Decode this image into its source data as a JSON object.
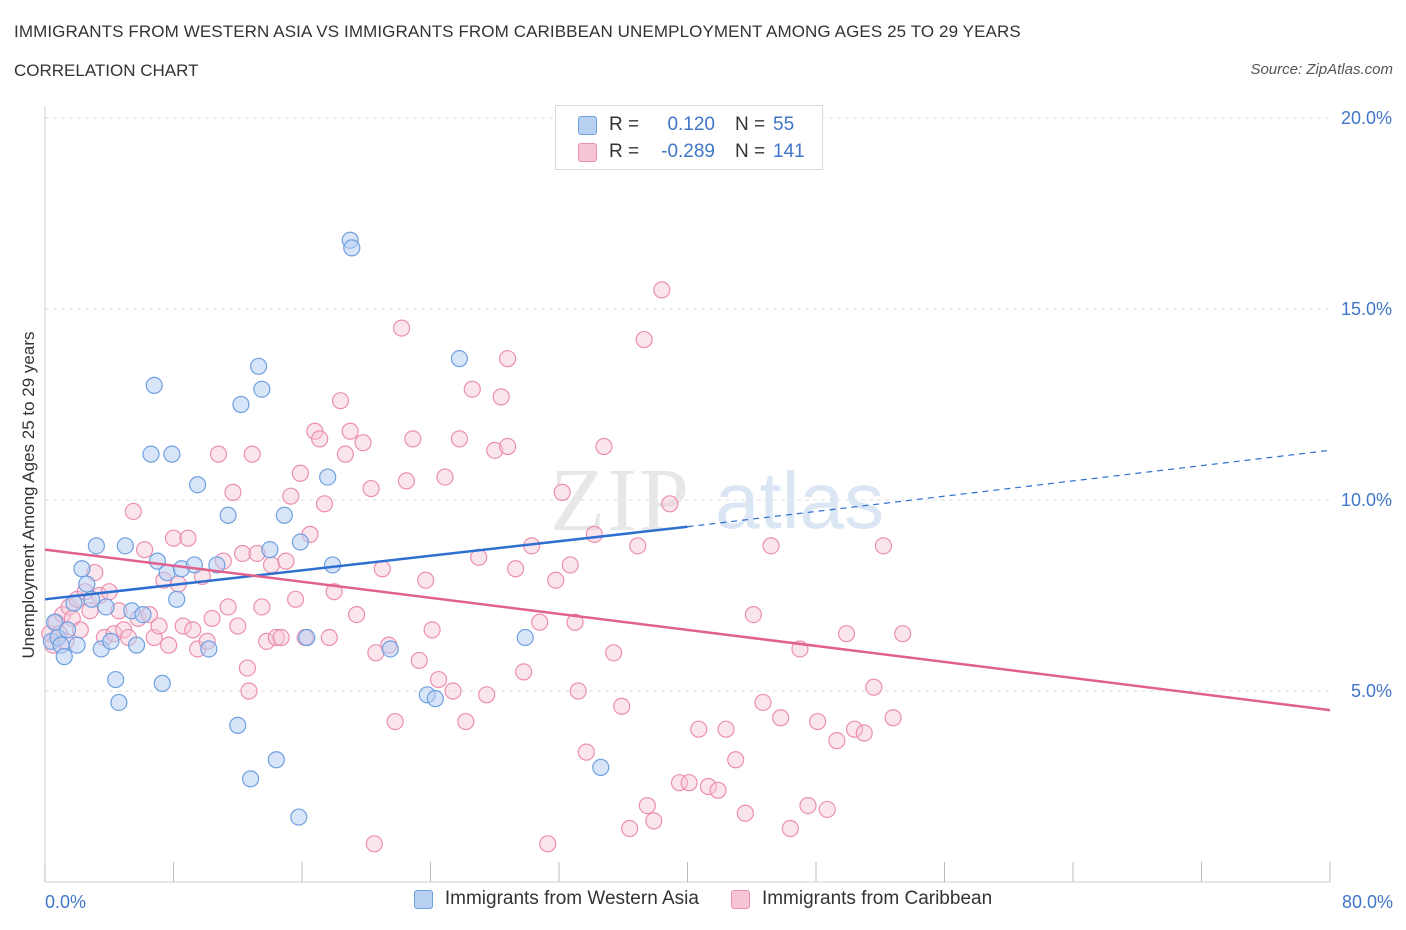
{
  "header": {
    "title": "IMMIGRANTS FROM WESTERN ASIA VS IMMIGRANTS FROM CARIBBEAN UNEMPLOYMENT AMONG AGES 25 TO 29 YEARS",
    "subtitle": "CORRELATION CHART",
    "source": "Source: ZipAtlas.com"
  },
  "watermark": {
    "zip": "ZIP",
    "atlas": "atlas"
  },
  "legend": {
    "rows": [
      {
        "r_label": "R =",
        "r_value": "0.120",
        "n_label": "N =",
        "n_value": "55",
        "color": "#6fa0e0"
      },
      {
        "r_label": "R =",
        "r_value": "-0.289",
        "n_label": "N =",
        "n_value": "141",
        "color": "#ec8fae"
      }
    ]
  },
  "bottom_legend": {
    "western_asia": "Immigrants from Western Asia",
    "caribbean": "Immigrants from Caribbean"
  },
  "chart_data": {
    "type": "scatter",
    "title": "IMMIGRANTS FROM WESTERN ASIA VS IMMIGRANTS FROM CARIBBEAN UNEMPLOYMENT AMONG AGES 25 TO 29 YEARS",
    "xlabel": "",
    "ylabel": "Unemployment Among Ages 25 to 29 years",
    "xlim": [
      0,
      80
    ],
    "ylim": [
      0,
      20
    ],
    "x_tick_labels": [
      "0.0%",
      "80.0%"
    ],
    "y_ticks": [
      5,
      10,
      15,
      20
    ],
    "y_tick_labels": [
      "5.0%",
      "10.0%",
      "15.0%",
      "20.0%"
    ],
    "grid": true,
    "series": [
      {
        "name": "Immigrants from Western Asia",
        "color": "#6fa0e0",
        "fill": "#b8d0f2",
        "points": [
          [
            0.4,
            6.3
          ],
          [
            0.6,
            6.8
          ],
          [
            0.8,
            6.4
          ],
          [
            1.0,
            6.2
          ],
          [
            1.2,
            5.9
          ],
          [
            1.4,
            6.6
          ],
          [
            1.8,
            7.3
          ],
          [
            2.0,
            6.2
          ],
          [
            2.3,
            8.2
          ],
          [
            2.6,
            7.8
          ],
          [
            2.9,
            7.4
          ],
          [
            3.2,
            8.8
          ],
          [
            3.5,
            6.1
          ],
          [
            3.8,
            7.2
          ],
          [
            4.1,
            6.3
          ],
          [
            4.4,
            5.3
          ],
          [
            4.6,
            4.7
          ],
          [
            5.0,
            8.8
          ],
          [
            5.4,
            7.1
          ],
          [
            5.7,
            6.2
          ],
          [
            6.1,
            7.0
          ],
          [
            6.6,
            11.2
          ],
          [
            6.8,
            13.0
          ],
          [
            7.0,
            8.4
          ],
          [
            7.3,
            5.2
          ],
          [
            7.6,
            8.1
          ],
          [
            7.9,
            11.2
          ],
          [
            8.2,
            7.4
          ],
          [
            8.5,
            8.2
          ],
          [
            9.3,
            8.3
          ],
          [
            9.5,
            10.4
          ],
          [
            10.2,
            6.1
          ],
          [
            10.7,
            8.3
          ],
          [
            11.4,
            9.6
          ],
          [
            12.0,
            4.1
          ],
          [
            12.2,
            12.5
          ],
          [
            12.8,
            2.7
          ],
          [
            13.3,
            13.5
          ],
          [
            13.5,
            12.9
          ],
          [
            14.0,
            8.7
          ],
          [
            14.4,
            3.2
          ],
          [
            14.9,
            9.6
          ],
          [
            15.8,
            1.7
          ],
          [
            15.9,
            8.9
          ],
          [
            16.3,
            6.4
          ],
          [
            17.6,
            10.6
          ],
          [
            17.9,
            8.3
          ],
          [
            19.0,
            16.8
          ],
          [
            19.1,
            16.6
          ],
          [
            21.5,
            6.1
          ],
          [
            23.8,
            4.9
          ],
          [
            24.3,
            4.8
          ],
          [
            25.8,
            13.7
          ],
          [
            29.9,
            6.4
          ],
          [
            34.6,
            3.0
          ]
        ]
      },
      {
        "name": "Immigrants from Caribbean",
        "color": "#ec8fae",
        "fill": "#f6c6d6",
        "points": [
          [
            0.3,
            6.5
          ],
          [
            0.5,
            6.2
          ],
          [
            0.7,
            6.8
          ],
          [
            0.9,
            6.5
          ],
          [
            1.1,
            7.0
          ],
          [
            1.3,
            6.3
          ],
          [
            1.5,
            7.2
          ],
          [
            1.7,
            6.9
          ],
          [
            2.0,
            7.4
          ],
          [
            2.2,
            6.6
          ],
          [
            2.5,
            7.6
          ],
          [
            2.8,
            7.1
          ],
          [
            3.1,
            8.1
          ],
          [
            3.4,
            7.5
          ],
          [
            3.7,
            6.4
          ],
          [
            4.0,
            7.6
          ],
          [
            4.3,
            6.5
          ],
          [
            4.6,
            7.1
          ],
          [
            4.9,
            6.6
          ],
          [
            5.2,
            6.4
          ],
          [
            5.5,
            9.7
          ],
          [
            5.8,
            6.9
          ],
          [
            6.2,
            8.7
          ],
          [
            6.5,
            7.0
          ],
          [
            6.8,
            6.4
          ],
          [
            7.1,
            6.7
          ],
          [
            7.4,
            7.9
          ],
          [
            7.7,
            6.2
          ],
          [
            8.0,
            9.0
          ],
          [
            8.3,
            7.8
          ],
          [
            8.6,
            6.7
          ],
          [
            8.9,
            9.0
          ],
          [
            9.2,
            6.6
          ],
          [
            9.5,
            6.1
          ],
          [
            9.8,
            8.0
          ],
          [
            10.1,
            6.3
          ],
          [
            10.4,
            6.9
          ],
          [
            10.8,
            11.2
          ],
          [
            11.1,
            8.4
          ],
          [
            11.4,
            7.2
          ],
          [
            11.7,
            10.2
          ],
          [
            12.0,
            6.7
          ],
          [
            12.3,
            8.6
          ],
          [
            12.6,
            5.6
          ],
          [
            12.9,
            11.2
          ],
          [
            13.2,
            8.6
          ],
          [
            13.5,
            7.2
          ],
          [
            13.8,
            6.3
          ],
          [
            14.1,
            8.3
          ],
          [
            14.4,
            6.4
          ],
          [
            14.7,
            6.4
          ],
          [
            15.0,
            8.4
          ],
          [
            15.3,
            10.1
          ],
          [
            15.6,
            7.4
          ],
          [
            15.9,
            10.7
          ],
          [
            16.2,
            6.4
          ],
          [
            16.5,
            9.1
          ],
          [
            16.8,
            11.8
          ],
          [
            17.1,
            11.6
          ],
          [
            17.4,
            9.9
          ],
          [
            17.7,
            6.4
          ],
          [
            18.0,
            7.6
          ],
          [
            18.4,
            12.6
          ],
          [
            18.7,
            11.2
          ],
          [
            19.0,
            11.8
          ],
          [
            19.4,
            7.0
          ],
          [
            19.8,
            11.5
          ],
          [
            20.3,
            10.3
          ],
          [
            20.6,
            6.0
          ],
          [
            21.0,
            8.2
          ],
          [
            21.4,
            6.2
          ],
          [
            21.8,
            4.2
          ],
          [
            22.2,
            14.5
          ],
          [
            22.5,
            10.5
          ],
          [
            22.9,
            11.6
          ],
          [
            23.3,
            5.8
          ],
          [
            23.7,
            7.9
          ],
          [
            24.1,
            6.6
          ],
          [
            24.5,
            5.3
          ],
          [
            24.9,
            10.6
          ],
          [
            25.4,
            5.0
          ],
          [
            25.8,
            11.6
          ],
          [
            26.2,
            4.2
          ],
          [
            26.6,
            12.9
          ],
          [
            27.0,
            8.5
          ],
          [
            27.5,
            4.9
          ],
          [
            28.0,
            11.3
          ],
          [
            28.4,
            12.7
          ],
          [
            28.8,
            13.7
          ],
          [
            29.3,
            8.2
          ],
          [
            29.8,
            5.5
          ],
          [
            30.3,
            8.8
          ],
          [
            30.8,
            6.8
          ],
          [
            31.3,
            1.0
          ],
          [
            31.8,
            7.9
          ],
          [
            32.2,
            10.2
          ],
          [
            32.7,
            8.3
          ],
          [
            33.2,
            5.0
          ],
          [
            33.7,
            3.4
          ],
          [
            34.2,
            9.1
          ],
          [
            34.8,
            11.4
          ],
          [
            35.4,
            6.0
          ],
          [
            35.9,
            4.6
          ],
          [
            36.4,
            1.4
          ],
          [
            36.9,
            8.8
          ],
          [
            37.5,
            2.0
          ],
          [
            37.9,
            1.6
          ],
          [
            38.4,
            15.5
          ],
          [
            38.9,
            9.9
          ],
          [
            39.5,
            2.6
          ],
          [
            40.1,
            2.6
          ],
          [
            40.7,
            4.0
          ],
          [
            41.3,
            2.5
          ],
          [
            41.9,
            2.4
          ],
          [
            42.4,
            4.0
          ],
          [
            43.0,
            3.2
          ],
          [
            43.6,
            1.8
          ],
          [
            44.1,
            7.0
          ],
          [
            44.7,
            4.7
          ],
          [
            45.2,
            8.8
          ],
          [
            45.8,
            4.3
          ],
          [
            46.4,
            1.4
          ],
          [
            47.0,
            6.1
          ],
          [
            47.5,
            2.0
          ],
          [
            48.1,
            4.2
          ],
          [
            48.7,
            1.9
          ],
          [
            49.3,
            3.7
          ],
          [
            49.9,
            6.5
          ],
          [
            50.4,
            4.0
          ],
          [
            51.0,
            3.9
          ],
          [
            51.6,
            5.1
          ],
          [
            52.2,
            8.8
          ],
          [
            52.8,
            4.3
          ],
          [
            53.4,
            6.5
          ],
          [
            20.5,
            1.0
          ],
          [
            28.8,
            11.4
          ],
          [
            33.0,
            6.8
          ],
          [
            37.3,
            14.2
          ],
          [
            12.7,
            5.0
          ]
        ]
      }
    ],
    "trend_lines": [
      {
        "series": "Immigrants from Western Asia",
        "x": [
          0,
          40
        ],
        "y": [
          7.4,
          9.3
        ],
        "dashed_extension_to": [
          80,
          11.3
        ]
      },
      {
        "series": "Immigrants from Caribbean",
        "x": [
          0,
          80
        ],
        "y": [
          8.7,
          4.5
        ]
      }
    ]
  }
}
